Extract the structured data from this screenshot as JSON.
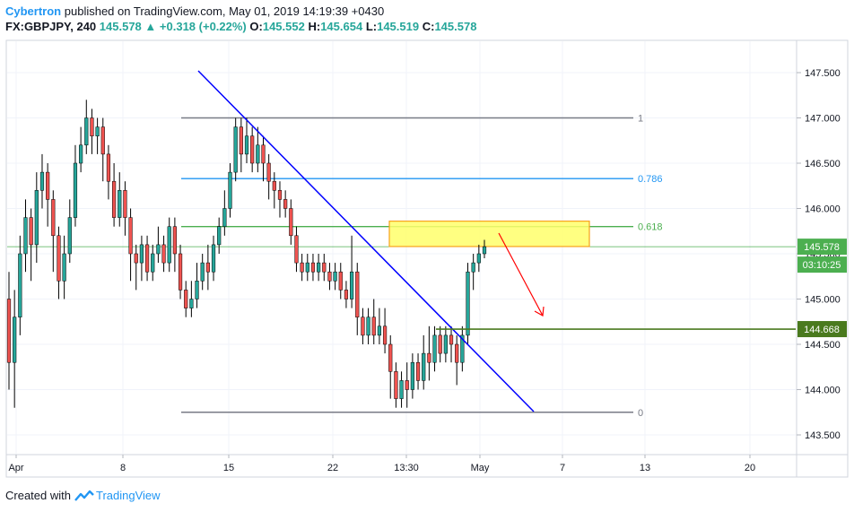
{
  "header": {
    "author": "Cybertron",
    "published": "published on TradingView.com, May 01, 2019 14:19:39 +0430",
    "symbol": "FX:GBPJPY, 240",
    "last": "145.578",
    "change_arrow": "▲",
    "change": "+0.318 (+0.22%)",
    "o_label": "O:",
    "o_val": "145.552",
    "h_label": "H:",
    "h_val": "145.654",
    "l_label": "L:",
    "l_val": "145.519",
    "c_label": "C:",
    "c_val": "145.578"
  },
  "footer": {
    "created_with": "Created with",
    "brand": "TradingView",
    "logo_icon": "tradingview-logo-icon"
  },
  "colors": {
    "up_candle": "#26a69a",
    "down_candle": "#ef5350",
    "trendline": "#0000ff",
    "fib_1": "#787b86",
    "fib_786": "#2196f3",
    "fib_618": "#4caf50",
    "support": "#4a7a1e",
    "resistance_zone_fill": "#ffff6b",
    "resistance_zone_border": "#f7a21b",
    "forecast_arrow": "#ff0000",
    "last_price_line": "#4caf50"
  },
  "chart_data": {
    "type": "candlestick",
    "ylim": [
      143.3,
      147.65
    ],
    "y_ticks": [
      143.5,
      144.0,
      144.5,
      145.0,
      145.5,
      146.0,
      146.5,
      147.0,
      147.5
    ],
    "y_tick_labels": [
      "143.500",
      "144.000",
      "144.500",
      "145.000",
      "145.500",
      "146.000",
      "146.500",
      "147.000",
      "147.500"
    ],
    "x_tick_labels": [
      "Apr",
      "8",
      "15",
      "22",
      "13:30",
      "May",
      "7",
      "13",
      "20"
    ],
    "last_price_label": "145.578",
    "countdown_label": "03:10:25",
    "support_label": "144.668",
    "fib_levels": [
      {
        "label": "1",
        "price": 147.0
      },
      {
        "label": "0.786",
        "price": 146.33
      },
      {
        "label": "0.618",
        "price": 145.8
      },
      {
        "label": "0",
        "price": 143.75
      }
    ],
    "support_price": 144.668,
    "resistance_zone": {
      "low": 145.58,
      "high": 145.86
    },
    "candles": [
      [
        145.0,
        144.3,
        145.3,
        144.0
      ],
      [
        144.3,
        144.8,
        145.1,
        143.8
      ],
      [
        144.8,
        145.5,
        145.7,
        144.6
      ],
      [
        145.5,
        145.9,
        146.1,
        145.3
      ],
      [
        145.9,
        145.6,
        146.0,
        145.2
      ],
      [
        145.6,
        146.2,
        146.4,
        145.4
      ],
      [
        146.2,
        146.4,
        146.6,
        146.0
      ],
      [
        146.4,
        146.1,
        146.5,
        145.8
      ],
      [
        146.1,
        145.7,
        146.2,
        145.3
      ],
      [
        145.7,
        145.2,
        145.8,
        145.0
      ],
      [
        145.2,
        145.5,
        145.7,
        145.0
      ],
      [
        145.5,
        145.9,
        146.1,
        145.4
      ],
      [
        145.9,
        146.5,
        146.7,
        145.8
      ],
      [
        146.5,
        146.7,
        146.9,
        146.4
      ],
      [
        146.7,
        147.0,
        147.2,
        146.6
      ],
      [
        147.0,
        146.8,
        147.1,
        146.6
      ],
      [
        146.8,
        146.9,
        147.0,
        146.6
      ],
      [
        146.9,
        146.6,
        147.0,
        146.3
      ],
      [
        146.6,
        146.3,
        146.7,
        146.1
      ],
      [
        146.3,
        145.9,
        146.5,
        145.8
      ],
      [
        145.9,
        146.2,
        146.4,
        145.8
      ],
      [
        146.2,
        145.9,
        146.3,
        145.7
      ],
      [
        145.9,
        145.5,
        146.0,
        145.2
      ],
      [
        145.5,
        145.4,
        145.6,
        145.1
      ],
      [
        145.4,
        145.6,
        145.7,
        145.2
      ],
      [
        145.6,
        145.3,
        145.7,
        145.2
      ],
      [
        145.3,
        145.5,
        145.6,
        145.2
      ],
      [
        145.5,
        145.6,
        145.8,
        145.4
      ],
      [
        145.6,
        145.4,
        145.7,
        145.3
      ],
      [
        145.4,
        145.8,
        145.9,
        145.3
      ],
      [
        145.8,
        145.5,
        145.9,
        145.3
      ],
      [
        145.5,
        145.1,
        145.6,
        145.0
      ],
      [
        145.1,
        144.9,
        145.2,
        144.8
      ],
      [
        144.9,
        145.0,
        145.2,
        144.8
      ],
      [
        145.0,
        145.2,
        145.4,
        144.9
      ],
      [
        145.2,
        145.4,
        145.5,
        145.1
      ],
      [
        145.4,
        145.3,
        145.6,
        145.1
      ],
      [
        145.3,
        145.6,
        145.7,
        145.2
      ],
      [
        145.6,
        145.8,
        145.9,
        145.5
      ],
      [
        145.8,
        146.0,
        146.2,
        145.7
      ],
      [
        146.0,
        146.4,
        146.5,
        145.9
      ],
      [
        146.4,
        146.9,
        147.0,
        146.3
      ],
      [
        146.9,
        146.6,
        147.0,
        146.4
      ],
      [
        146.6,
        146.8,
        147.0,
        146.5
      ],
      [
        146.8,
        146.5,
        146.9,
        146.4
      ],
      [
        146.5,
        146.7,
        146.9,
        146.4
      ],
      [
        146.7,
        146.5,
        146.8,
        146.3
      ],
      [
        146.5,
        146.3,
        146.6,
        146.1
      ],
      [
        146.3,
        146.2,
        146.4,
        146.0
      ],
      [
        146.2,
        146.1,
        146.3,
        145.9
      ],
      [
        146.1,
        146.0,
        146.2,
        145.9
      ],
      [
        146.0,
        145.7,
        146.1,
        145.6
      ],
      [
        145.7,
        145.4,
        145.8,
        145.3
      ],
      [
        145.4,
        145.3,
        145.5,
        145.2
      ],
      [
        145.3,
        145.4,
        145.5,
        145.2
      ],
      [
        145.4,
        145.3,
        145.5,
        145.2
      ],
      [
        145.3,
        145.4,
        145.5,
        145.2
      ],
      [
        145.4,
        145.3,
        145.5,
        145.2
      ],
      [
        145.3,
        145.2,
        145.4,
        145.1
      ],
      [
        145.2,
        145.3,
        145.4,
        145.1
      ],
      [
        145.3,
        145.1,
        145.4,
        145.0
      ],
      [
        145.1,
        145.0,
        145.2,
        144.9
      ],
      [
        145.0,
        145.3,
        145.7,
        144.9
      ],
      [
        145.3,
        144.8,
        145.4,
        144.6
      ],
      [
        144.8,
        144.6,
        144.9,
        144.5
      ],
      [
        144.6,
        144.8,
        144.9,
        144.5
      ],
      [
        144.8,
        144.6,
        145.0,
        144.5
      ],
      [
        144.6,
        144.7,
        144.9,
        144.5
      ],
      [
        144.7,
        144.5,
        144.9,
        144.4
      ],
      [
        144.5,
        144.2,
        144.6,
        143.9
      ],
      [
        144.2,
        143.9,
        144.3,
        143.8
      ],
      [
        143.9,
        144.1,
        144.2,
        143.8
      ],
      [
        144.1,
        144.0,
        144.3,
        143.8
      ],
      [
        144.0,
        144.3,
        144.4,
        143.9
      ],
      [
        144.3,
        144.1,
        144.4,
        144.0
      ],
      [
        144.1,
        144.4,
        144.6,
        144.0
      ],
      [
        144.4,
        144.3,
        144.7,
        144.1
      ],
      [
        144.3,
        144.6,
        144.7,
        144.2
      ],
      [
        144.6,
        144.4,
        144.7,
        144.3
      ],
      [
        144.4,
        144.6,
        144.7,
        144.3
      ],
      [
        144.6,
        144.5,
        144.7,
        144.3
      ],
      [
        144.5,
        144.3,
        144.6,
        144.05
      ],
      [
        144.3,
        144.6,
        144.7,
        144.2
      ],
      [
        144.6,
        145.3,
        145.4,
        144.5
      ],
      [
        145.3,
        145.4,
        145.5,
        145.1
      ],
      [
        145.4,
        145.5,
        145.6,
        145.3
      ],
      [
        145.5,
        145.578,
        145.654,
        145.45
      ]
    ]
  }
}
